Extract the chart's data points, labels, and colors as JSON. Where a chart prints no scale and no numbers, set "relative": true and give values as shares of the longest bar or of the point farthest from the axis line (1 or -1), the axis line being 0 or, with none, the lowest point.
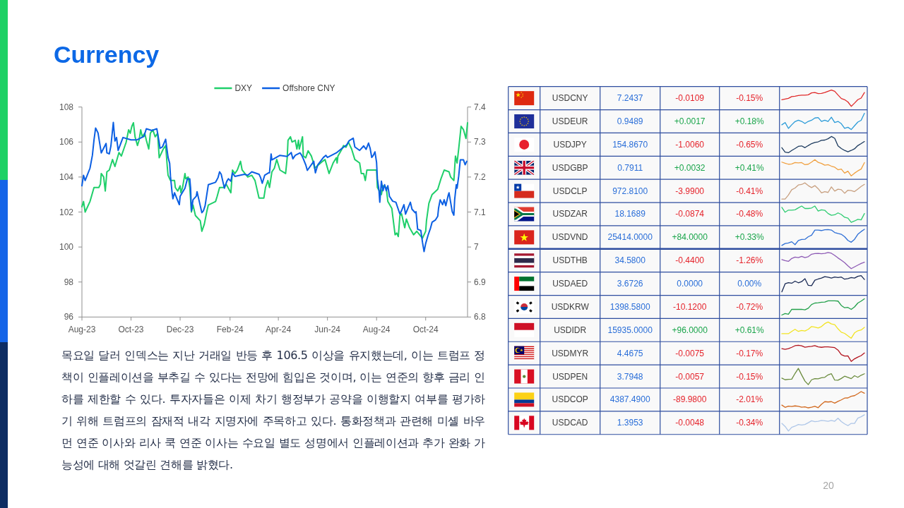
{
  "chart_data": [
    {
      "type": "line",
      "title": "Currency",
      "legend": "top",
      "xlim": [
        "2023-08-01",
        "2024-11-22"
      ],
      "xticks": [
        {
          "value": "2023-08-01",
          "label": "Aug-23"
        },
        {
          "value": "2023-10-01",
          "label": "Oct-23"
        },
        {
          "value": "2023-12-01",
          "label": "Dec-23"
        },
        {
          "value": "2024-02-01",
          "label": "Feb-24"
        },
        {
          "value": "2024-04-01",
          "label": "Apr-24"
        },
        {
          "value": "2024-06-01",
          "label": "Jun-24"
        },
        {
          "value": "2024-08-01",
          "label": "Aug-24"
        },
        {
          "value": "2024-10-01",
          "label": "Oct-24"
        }
      ],
      "ylim": [
        96,
        108
      ],
      "yticks": [
        96,
        98,
        100,
        102,
        104,
        106,
        108
      ],
      "y2lim": [
        6.8,
        7.4
      ],
      "y2ticks": [
        6.8,
        6.9,
        7,
        7.1,
        7.2,
        7.3,
        7.4
      ],
      "series": [
        {
          "name": "DXY",
          "color": "#1fcf6a",
          "x": [
            "2023-08-01",
            "2023-08-03",
            "2023-08-05",
            "2023-08-11",
            "2023-08-16",
            "2023-08-22",
            "2023-08-24",
            "2023-08-25",
            "2023-08-28",
            "2023-08-30",
            "2023-09-01",
            "2023-09-04",
            "2023-09-08",
            "2023-09-11",
            "2023-09-16",
            "2023-09-19",
            "2023-09-22",
            "2023-09-25",
            "2023-09-28",
            "2023-09-30",
            "2023-10-02",
            "2023-10-04",
            "2023-10-06",
            "2023-10-09",
            "2023-10-11",
            "2023-10-13",
            "2023-10-15",
            "2023-10-18",
            "2023-10-20",
            "2023-10-23",
            "2023-10-25",
            "2023-10-28",
            "2023-10-31",
            "2023-11-03",
            "2023-11-05",
            "2023-11-10",
            "2023-11-13",
            "2023-11-15",
            "2023-11-16",
            "2023-11-19",
            "2023-11-24",
            "2023-11-25",
            "2023-11-28",
            "2023-12-01",
            "2023-12-02",
            "2023-12-04",
            "2023-12-07",
            "2023-12-08",
            "2023-12-11",
            "2023-12-13",
            "2023-12-15",
            "2023-12-17",
            "2023-12-20",
            "2023-12-26",
            "2023-12-28",
            "2023-12-31",
            "2024-01-03",
            "2024-01-05",
            "2024-01-14",
            "2024-01-16",
            "2024-01-19",
            "2024-01-24",
            "2024-01-27",
            "2024-02-02",
            "2024-02-04",
            "2024-02-07",
            "2024-02-10",
            "2024-02-14",
            "2024-02-16",
            "2024-02-23",
            "2024-02-28",
            "2024-03-03",
            "2024-03-08",
            "2024-03-14",
            "2024-03-16",
            "2024-03-19",
            "2024-03-21",
            "2024-03-24",
            "2024-03-27",
            "2024-03-30",
            "2024-04-03",
            "2024-04-10",
            "2024-04-12",
            "2024-04-13",
            "2024-04-16",
            "2024-04-18",
            "2024-04-22",
            "2024-04-24",
            "2024-04-26",
            "2024-04-27",
            "2024-05-01",
            "2024-05-02",
            "2024-05-05",
            "2024-05-08",
            "2024-05-12",
            "2024-05-14",
            "2024-05-16",
            "2024-05-26",
            "2024-05-29",
            "2024-06-03",
            "2024-06-08",
            "2024-06-12",
            "2024-06-13",
            "2024-06-14",
            "2024-06-19",
            "2024-06-21",
            "2024-06-24",
            "2024-06-27",
            "2024-07-01",
            "2024-07-05",
            "2024-07-11",
            "2024-07-13",
            "2024-07-16",
            "2024-07-18",
            "2024-07-20",
            "2024-08-01",
            "2024-08-02",
            "2024-08-07",
            "2024-08-09",
            "2024-08-13",
            "2024-08-15",
            "2024-08-20",
            "2024-08-21",
            "2024-08-24",
            "2024-08-26",
            "2024-08-28",
            "2024-08-30",
            "2024-09-01",
            "2024-09-05",
            "2024-09-07",
            "2024-09-11",
            "2024-09-16",
            "2024-09-20",
            "2024-09-27",
            "2024-10-01",
            "2024-10-02",
            "2024-10-05",
            "2024-10-09",
            "2024-10-16",
            "2024-10-20",
            "2024-10-24",
            "2024-10-30",
            "2024-11-01",
            "2024-11-05",
            "2024-11-07",
            "2024-11-09",
            "2024-11-11",
            "2024-11-14",
            "2024-11-17",
            "2024-11-20",
            "2024-11-22"
          ],
          "values": [
            102.3,
            102.6,
            102.0,
            102.6,
            103.4,
            103.4,
            103.6,
            104.2,
            104.0,
            103.2,
            104.3,
            104.4,
            105.0,
            104.6,
            105.4,
            105.2,
            105.6,
            106.0,
            106.7,
            106.5,
            106.9,
            107.1,
            106.3,
            105.8,
            106.1,
            106.7,
            106.3,
            106.5,
            106.1,
            105.6,
            106.5,
            106.7,
            106.3,
            106.5,
            105.1,
            105.6,
            105.8,
            104.6,
            104.1,
            103.8,
            103.8,
            103.4,
            103.2,
            103.5,
            103.1,
            103.4,
            104.2,
            103.9,
            104.0,
            103.4,
            102.0,
            102.4,
            101.8,
            101.5,
            100.9,
            101.3,
            102.0,
            102.4,
            102.6,
            102.9,
            103.4,
            103.4,
            103.6,
            103.1,
            104.4,
            104.2,
            104.4,
            104.9,
            104.4,
            104.0,
            104.1,
            103.8,
            102.8,
            102.8,
            103.4,
            103.8,
            103.4,
            104.3,
            104.5,
            105.0,
            104.4,
            104.2,
            105.1,
            106.1,
            106.3,
            106.0,
            106.1,
            105.6,
            106.1,
            105.6,
            106.3,
            105.2,
            105.1,
            105.5,
            105.2,
            104.9,
            104.5,
            104.9,
            105.0,
            104.2,
            104.8,
            105.1,
            104.8,
            105.2,
            105.6,
            105.8,
            105.7,
            106.0,
            105.6,
            105.0,
            104.8,
            104.2,
            104.2,
            103.8,
            104.4,
            104.4,
            103.4,
            103.0,
            103.5,
            103.4,
            102.6,
            102.2,
            101.8,
            100.7,
            100.8,
            100.6,
            101.8,
            101.9,
            101.1,
            101.6,
            101.1,
            100.7,
            100.9,
            100.5,
            100.9,
            101.5,
            102.5,
            103.0,
            103.3,
            103.9,
            104.4,
            104.3,
            104.0,
            103.8,
            105.2,
            104.8,
            105.6,
            106.9,
            106.7,
            106.2,
            107.1
          ]
        },
        {
          "name": "Offshore CNY",
          "color": "#0b5fe3",
          "axis": "y2",
          "x": [
            "2023-08-01",
            "2023-08-03",
            "2023-08-05",
            "2023-08-11",
            "2023-08-14",
            "2023-08-16",
            "2023-08-18",
            "2023-08-21",
            "2023-08-25",
            "2023-08-31",
            "2023-09-01",
            "2023-09-04",
            "2023-09-06",
            "2023-09-09",
            "2023-09-11",
            "2023-09-13",
            "2023-09-15",
            "2023-09-21",
            "2023-10-01",
            "2023-10-08",
            "2023-10-17",
            "2023-10-20",
            "2023-10-27",
            "2023-11-02",
            "2023-11-05",
            "2023-11-06",
            "2023-11-09",
            "2023-11-13",
            "2023-11-16",
            "2023-11-18",
            "2023-11-19",
            "2023-11-21",
            "2023-11-22",
            "2023-11-24",
            "2023-11-30",
            "2023-12-01",
            "2023-12-07",
            "2023-12-10",
            "2023-12-13",
            "2023-12-14",
            "2023-12-15",
            "2023-12-17",
            "2023-12-21",
            "2023-12-22",
            "2023-12-24",
            "2023-12-28",
            "2023-12-30",
            "2024-01-01",
            "2024-01-03",
            "2024-01-05",
            "2024-01-14",
            "2024-01-17",
            "2024-01-19",
            "2024-01-21",
            "2024-01-23",
            "2024-01-25",
            "2024-01-28",
            "2024-01-30",
            "2024-02-02",
            "2024-02-04",
            "2024-02-07",
            "2024-02-19",
            "2024-02-23",
            "2024-02-28",
            "2024-03-08",
            "2024-03-10",
            "2024-03-12",
            "2024-03-15",
            "2024-03-20",
            "2024-03-21",
            "2024-03-23",
            "2024-03-24",
            "2024-04-03",
            "2024-04-12",
            "2024-04-17",
            "2024-04-19",
            "2024-04-22",
            "2024-04-28",
            "2024-04-30",
            "2024-05-02",
            "2024-05-05",
            "2024-05-07",
            "2024-05-15",
            "2024-05-17",
            "2024-05-20",
            "2024-05-27",
            "2024-05-30",
            "2024-06-01",
            "2024-06-12",
            "2024-06-19",
            "2024-06-25",
            "2024-06-28",
            "2024-07-03",
            "2024-07-05",
            "2024-07-11",
            "2024-07-16",
            "2024-07-19",
            "2024-07-22",
            "2024-07-24",
            "2024-07-26",
            "2024-07-28",
            "2024-07-30",
            "2024-08-01",
            "2024-08-02",
            "2024-08-04",
            "2024-08-05",
            "2024-08-07",
            "2024-08-09",
            "2024-08-11",
            "2024-08-13",
            "2024-08-15",
            "2024-08-17",
            "2024-08-21",
            "2024-08-25",
            "2024-08-30",
            "2024-09-01",
            "2024-09-04",
            "2024-09-06",
            "2024-09-12",
            "2024-09-14",
            "2024-09-18",
            "2024-09-19",
            "2024-09-21",
            "2024-09-25",
            "2024-09-27",
            "2024-09-29",
            "2024-10-01",
            "2024-10-04",
            "2024-10-07",
            "2024-10-09",
            "2024-10-13",
            "2024-10-16",
            "2024-10-17",
            "2024-10-19",
            "2024-10-22",
            "2024-10-24",
            "2024-10-26",
            "2024-10-29",
            "2024-10-30",
            "2024-11-01",
            "2024-11-03",
            "2024-11-05",
            "2024-11-06",
            "2024-11-08",
            "2024-11-09",
            "2024-11-11",
            "2024-11-13",
            "2024-11-17",
            "2024-11-19",
            "2024-11-21"
          ],
          "values": [
            7.175,
            7.205,
            7.19,
            7.225,
            7.262,
            7.306,
            7.34,
            7.326,
            7.269,
            7.296,
            7.269,
            7.266,
            7.289,
            7.356,
            7.303,
            7.313,
            7.276,
            7.313,
            7.306,
            7.306,
            7.316,
            7.338,
            7.333,
            7.338,
            7.299,
            7.282,
            7.286,
            7.308,
            7.256,
            7.239,
            7.202,
            7.155,
            7.138,
            7.155,
            7.121,
            7.145,
            7.168,
            7.195,
            7.195,
            7.168,
            7.104,
            7.135,
            7.145,
            7.158,
            7.138,
            7.098,
            7.104,
            7.118,
            7.148,
            7.178,
            7.185,
            7.198,
            7.215,
            7.208,
            7.188,
            7.168,
            7.188,
            7.195,
            7.188,
            7.212,
            7.202,
            7.208,
            7.205,
            7.215,
            7.208,
            7.198,
            7.182,
            7.205,
            7.212,
            7.212,
            7.266,
            7.249,
            7.262,
            7.259,
            7.27,
            7.252,
            7.262,
            7.269,
            7.262,
            7.252,
            7.235,
            7.219,
            7.245,
            7.212,
            7.235,
            7.256,
            7.262,
            7.256,
            7.269,
            7.282,
            7.292,
            7.304,
            7.311,
            7.286,
            7.276,
            7.289,
            7.279,
            7.297,
            7.282,
            7.256,
            7.262,
            7.272,
            7.242,
            7.195,
            7.161,
            7.128,
            7.188,
            7.161,
            7.178,
            7.161,
            7.175,
            7.145,
            7.131,
            7.128,
            7.094,
            7.104,
            7.121,
            7.094,
            7.128,
            7.108,
            7.098,
            7.101,
            7.051,
            7.047,
            7.014,
            6.987,
            7.01,
            7.034,
            7.054,
            7.071,
            7.077,
            7.088,
            7.111,
            7.135,
            7.121,
            7.135,
            7.118,
            7.148,
            7.155,
            7.128,
            7.101,
            7.091,
            7.135,
            7.178,
            7.168,
            7.202,
            7.249,
            7.249,
            7.235,
            7.245
          ]
        }
      ],
      "annotations": [
        "목요일 달러 인덱스는 지난 거래일 반등 후 106.5 이상을 유지했는데, 이는 트럼프 정책이 인플레이션을 부추길 수 있다는 전망에 힘입은 것이며, 이는 연준의 향후 금리 인하를 제한할 수 있다. 투자자들은 이제 차기 행정부가 공약을 이행할지 여부를 평가하기 위해 트럼프의 잠재적 내각 지명자에 주목하고 있다. 통화정책과 관련해 미셸 바우먼 연준 이사와 리사 쿡 연준 이사는 수요일 별도 성명에서 인플레이션과 추가 완화 가능성에 대해 엇갈린 견해를 밝혔다.",
        "20"
      ]
    },
    {
      "type": "other",
      "categories": [
        "USDCNY",
        "USDEUR",
        "USDJPY",
        "USDGBP",
        "USDCLP",
        "USDZAR",
        "USDVND",
        "USDTHB",
        "USDAED",
        "USDKRW",
        "USDIDR",
        "USDMYR",
        "USDPEN",
        "USDCOP",
        "USDCAD"
      ],
      "series": [
        {
          "color": "#2a6ed8",
          "values": [
            7.2437,
            0.9489,
            154.867,
            0.7911,
            972.81,
            18.1689,
            25414,
            34.58,
            3.6726,
            1398.58,
            15935,
            4.4675,
            3.7948,
            4387.49,
            1.3953
          ],
          "value_labels": [
            "7.2437",
            "0.9489",
            "154.8670",
            "0.7911",
            "972.8100",
            "18.1689",
            "25414.0000",
            "34.5800",
            "3.6726",
            "1398.5800",
            "15935.0000",
            "4.4675",
            "3.7948",
            "4387.4900",
            "1.3953"
          ]
        },
        {
          "values": [
            -0.0109,
            0.0017,
            -1.006,
            0.0032,
            -3.99,
            -0.0874,
            84,
            -0.44,
            0,
            -10.12,
            96,
            -0.0075,
            -0.0057,
            -89.98,
            -0.0048
          ],
          "value_labels": [
            "-0.0109",
            "+0.0017",
            "-1.0060",
            "+0.0032",
            "-3.9900",
            "-0.0874",
            "+84.0000",
            "-0.4400",
            "0.0000",
            "-10.1200",
            "+96.0000",
            "-0.0075",
            "-0.0057",
            "-89.9800",
            "-0.0048"
          ],
          "colors": [
            "#e5232b",
            "#1aa54b",
            "#e5232b",
            "#1aa54b",
            "#e5232b",
            "#e5232b",
            "#1aa54b",
            "#e5232b",
            "#2a6ed8",
            "#e5232b",
            "#1aa54b",
            "#e5232b",
            "#e5232b",
            "#e5232b",
            "#e5232b"
          ]
        },
        {
          "values": [
            -0.15,
            0.18,
            -0.65,
            0.41,
            -0.41,
            -0.48,
            0.33,
            -1.26,
            0,
            -0.72,
            0.61,
            -0.17,
            -0.15,
            -2.01,
            -0.34
          ],
          "value_labels": [
            "-0.15%",
            "+0.18%",
            "-0.65%",
            "+0.41%",
            "-0.41%",
            "-0.48%",
            "+0.33%",
            "-1.26%",
            "0.00%",
            "-0.72%",
            "+0.61%",
            "-0.17%",
            "-0.15%",
            "-2.01%",
            "-0.34%"
          ],
          "colors": [
            "#e5232b",
            "#1aa54b",
            "#e5232b",
            "#1aa54b",
            "#e5232b",
            "#e5232b",
            "#1aa54b",
            "#e5232b",
            "#2a6ed8",
            "#e5232b",
            "#1aa54b",
            "#e5232b",
            "#e5232b",
            "#e5232b",
            "#e5232b"
          ]
        }
      ]
    },
    {
      "type": "line",
      "relative": true,
      "color": "#e02a2a",
      "categories": [
        null,
        null,
        null,
        null,
        null,
        null,
        null,
        null,
        null,
        null,
        null,
        null,
        null,
        null,
        null,
        null,
        null,
        null,
        null,
        null,
        null,
        null,
        null,
        null,
        null,
        null
      ],
      "values": [
        0.41,
        0.45,
        0.49,
        0.6,
        0.62,
        0.67,
        0.69,
        0.69,
        0.71,
        0.83,
        0.85,
        0.79,
        0.8,
        0.85,
        0.93,
        1,
        0.93,
        0.7,
        0.48,
        0.41,
        0.27,
        0,
        0.2,
        0.41,
        0.51,
        0.85
      ]
    },
    {
      "type": "line",
      "relative": true,
      "color": "#2a9bd8",
      "categories": [
        null,
        null,
        null,
        null,
        null,
        null,
        null,
        null,
        null,
        null,
        null,
        null,
        null,
        null,
        null,
        null,
        null,
        null,
        null,
        null,
        null,
        null,
        null,
        null,
        null,
        null
      ],
      "values": [
        0.29,
        0.43,
        0.07,
        0.29,
        0.49,
        0.57,
        0.5,
        0.37,
        0.5,
        0.57,
        0.71,
        0.74,
        0.5,
        0.57,
        0.5,
        0.76,
        0.43,
        0.5,
        0.36,
        0.07,
        0.14,
        0,
        0.23,
        0.46,
        0.57,
        1
      ]
    },
    {
      "type": "line",
      "relative": true,
      "color": "#1c3a5e",
      "categories": [
        null,
        null,
        null,
        null,
        null,
        null,
        null,
        null,
        null,
        null,
        null,
        null,
        null,
        null,
        null,
        null,
        null,
        null,
        null,
        null,
        null,
        null,
        null,
        null,
        null,
        null
      ],
      "values": [
        0.31,
        0.04,
        0,
        0.14,
        0.26,
        0.39,
        0.42,
        0.31,
        0.44,
        0.56,
        0.63,
        0.67,
        0.76,
        0.78,
        0.86,
        1,
        0.89,
        0.42,
        0.26,
        0.14,
        0.06,
        0.14,
        0.24,
        0.44,
        0.56,
        0.69
      ]
    },
    {
      "type": "line",
      "relative": true,
      "color": "#f0a040",
      "categories": [
        null,
        null,
        null,
        null,
        null,
        null,
        null,
        null,
        null,
        null,
        null,
        null,
        null,
        null,
        null,
        null,
        null,
        null,
        null,
        null,
        null,
        null,
        null,
        null,
        null,
        null
      ],
      "values": [
        0.85,
        0.78,
        0.72,
        0.74,
        0.82,
        0.8,
        0.82,
        0.69,
        0.72,
        0.85,
        1,
        0.83,
        0.77,
        0.66,
        0.69,
        0.6,
        0.54,
        0.38,
        0.42,
        0.17,
        0.29,
        0,
        0.17,
        0.31,
        0.42,
        0.82
      ]
    },
    {
      "type": "line",
      "relative": true,
      "color": "#c8a080",
      "categories": [
        null,
        null,
        null,
        null,
        null,
        null,
        null,
        null,
        null,
        null,
        null,
        null,
        null,
        null,
        null,
        null,
        null,
        null,
        null,
        null,
        null,
        null,
        null,
        null,
        null,
        null
      ],
      "values": [
        0,
        0,
        0.25,
        0.58,
        0.68,
        0.87,
        0.9,
        1,
        0.83,
        0.71,
        0.83,
        0.64,
        0.38,
        0.46,
        0.41,
        0.75,
        0.49,
        0.61,
        0.58,
        0.36,
        0.55,
        0.52,
        0.46,
        0.62,
        0.78,
        0.91
      ]
    },
    {
      "type": "line",
      "relative": true,
      "color": "#2ecc71",
      "categories": [
        null,
        null,
        null,
        null,
        null,
        null,
        null,
        null,
        null,
        null,
        null,
        null,
        null,
        null,
        null,
        null,
        null,
        null,
        null,
        null,
        null,
        null,
        null,
        null,
        null,
        null
      ],
      "values": [
        0.92,
        0.62,
        0.75,
        0.75,
        0.77,
        0.89,
        1,
        0.85,
        0.85,
        0.88,
        1,
        0.69,
        0.77,
        0.74,
        0.54,
        0.43,
        0.46,
        0.58,
        0.48,
        0.31,
        0.26,
        0,
        0.08,
        0.18,
        0.15,
        0.54
      ]
    },
    {
      "type": "line",
      "relative": true,
      "color": "#2e6fd6",
      "categories": [
        null,
        null,
        null,
        null,
        null,
        null,
        null,
        null,
        null,
        null,
        null,
        null,
        null,
        null,
        null,
        null,
        null,
        null,
        null,
        null,
        null,
        null,
        null,
        null,
        null,
        null
      ],
      "values": [
        0,
        0.12,
        0.15,
        0.23,
        0.05,
        0.31,
        0.37,
        0.38,
        0.54,
        0.63,
        0.95,
        0.95,
        0.92,
        0.97,
        0.98,
        0.95,
        0.8,
        0.74,
        0.69,
        0.54,
        0.31,
        0.2,
        0.38,
        0.69,
        0.86,
        1
      ]
    },
    {
      "type": "line",
      "relative": true,
      "color": "#8e5bb5",
      "categories": [
        null,
        null,
        null,
        null,
        null,
        null,
        null,
        null,
        null,
        null,
        null,
        null,
        null,
        null,
        null,
        null,
        null,
        null,
        null,
        null,
        null,
        null,
        null,
        null,
        null,
        null
      ],
      "values": [
        0.56,
        0.5,
        0.45,
        0.63,
        0.71,
        0.68,
        0.76,
        0.68,
        0.74,
        0.89,
        0.93,
        0.94,
        0.92,
        0.94,
        1,
        0.95,
        0.82,
        0.66,
        0.52,
        0.37,
        0.18,
        0,
        0.11,
        0.22,
        0.32,
        0.4
      ]
    },
    {
      "type": "line",
      "relative": true,
      "color": "#1a2a55",
      "categories": [
        null,
        null,
        null,
        null,
        null,
        null,
        null,
        null,
        null,
        null,
        null,
        null,
        null,
        null,
        null,
        null,
        null,
        null,
        null,
        null,
        null,
        null,
        null,
        null,
        null,
        null
      ],
      "values": [
        0,
        0.5,
        0.57,
        0.53,
        0.66,
        0.56,
        0.63,
        0.81,
        0.4,
        0.38,
        0.72,
        0.79,
        0.85,
        0.94,
        0.9,
        0.85,
        0.91,
        0.88,
        0.91,
        0.78,
        0.82,
        0.88,
        0.85,
        0.96,
        1,
        0.76
      ]
    },
    {
      "type": "line",
      "relative": true,
      "color": "#22a04a",
      "categories": [
        null,
        null,
        null,
        null,
        null,
        null,
        null,
        null,
        null,
        null,
        null,
        null,
        null,
        null,
        null,
        null,
        null,
        null,
        null,
        null,
        null,
        null,
        null,
        null,
        null,
        null
      ],
      "values": [
        0,
        0.09,
        0.05,
        0.35,
        0.35,
        0.35,
        0.35,
        0.32,
        0.42,
        0.65,
        0.74,
        0.76,
        0.79,
        0.8,
        0.88,
        0.88,
        0.88,
        0.86,
        0.59,
        0.45,
        0.47,
        0.35,
        0.5,
        0.74,
        0.86,
        1
      ]
    },
    {
      "type": "line",
      "relative": true,
      "color": "#f2e422",
      "categories": [
        null,
        null,
        null,
        null,
        null,
        null,
        null,
        null,
        null,
        null,
        null,
        null,
        null,
        null,
        null,
        null,
        null,
        null,
        null,
        null,
        null,
        null,
        null,
        null,
        null,
        null
      ],
      "values": [
        0.28,
        0.28,
        0.28,
        0.42,
        0.55,
        0.42,
        0.48,
        0.45,
        0.55,
        0.72,
        0.69,
        0.63,
        0.72,
        0.9,
        1,
        0.88,
        0.84,
        0.58,
        0.37,
        0.3,
        0.15,
        0,
        0.33,
        0.46,
        0.51,
        0.67
      ]
    },
    {
      "type": "line",
      "relative": true,
      "color": "#b3141e",
      "categories": [
        null,
        null,
        null,
        null,
        null,
        null,
        null,
        null,
        null,
        null,
        null,
        null,
        null,
        null,
        null,
        null,
        null,
        null,
        null,
        null,
        null,
        null,
        null,
        null,
        null,
        null
      ],
      "values": [
        0.79,
        0.75,
        0.79,
        0.87,
        0.97,
        1,
        0.96,
        0.88,
        0.91,
        0.93,
        0.97,
        0.9,
        0.87,
        0.9,
        0.9,
        0.88,
        0.85,
        0.7,
        0.42,
        0.33,
        0.34,
        0,
        0.16,
        0.27,
        0.36,
        0.52
      ]
    },
    {
      "type": "line",
      "relative": true,
      "color": "#6b8c3e",
      "categories": [
        null,
        null,
        null,
        null,
        null,
        null,
        null,
        null,
        null,
        null,
        null,
        null,
        null,
        null,
        null,
        null,
        null,
        null,
        null,
        null,
        null,
        null,
        null,
        null,
        null,
        null
      ],
      "values": [
        0.4,
        0.3,
        0.33,
        0.34,
        0.69,
        1,
        0.6,
        0.22,
        0,
        0.3,
        0.37,
        0.36,
        0.42,
        0.45,
        0.6,
        0.67,
        0.28,
        0.27,
        0.38,
        0.52,
        0.45,
        0.37,
        0.55,
        0.45,
        0.58,
        0.67
      ]
    },
    {
      "type": "line",
      "relative": true,
      "color": "#d2691e",
      "categories": [
        null,
        null,
        null,
        null,
        null,
        null,
        null,
        null,
        null,
        null,
        null,
        null,
        null,
        null,
        null,
        null,
        null,
        null,
        null,
        null,
        null,
        null,
        null,
        null,
        null,
        null
      ],
      "values": [
        0.17,
        0.03,
        0.1,
        0.08,
        0.12,
        0.09,
        0.04,
        0.06,
        0,
        0.04,
        0.09,
        0.01,
        0.22,
        0.38,
        0.36,
        0.38,
        0.29,
        0.4,
        0.49,
        0.6,
        0.61,
        0.71,
        0.75,
        0.87,
        1,
        0.9
      ]
    },
    {
      "type": "line",
      "relative": true,
      "color": "#aec6e8",
      "categories": [
        null,
        null,
        null,
        null,
        null,
        null,
        null,
        null,
        null,
        null,
        null,
        null,
        null,
        null,
        null,
        null,
        null,
        null,
        null,
        null,
        null,
        null,
        null,
        null,
        null,
        null
      ],
      "values": [
        0.47,
        0.28,
        0,
        0.23,
        0.3,
        0.4,
        0.37,
        0.4,
        0.51,
        0.63,
        0.58,
        0.6,
        0.65,
        0.63,
        0.6,
        0.65,
        0.6,
        0.79,
        0.58,
        0.44,
        0.33,
        0.47,
        0.47,
        0.79,
        0.88,
        1
      ]
    }
  ]
}
